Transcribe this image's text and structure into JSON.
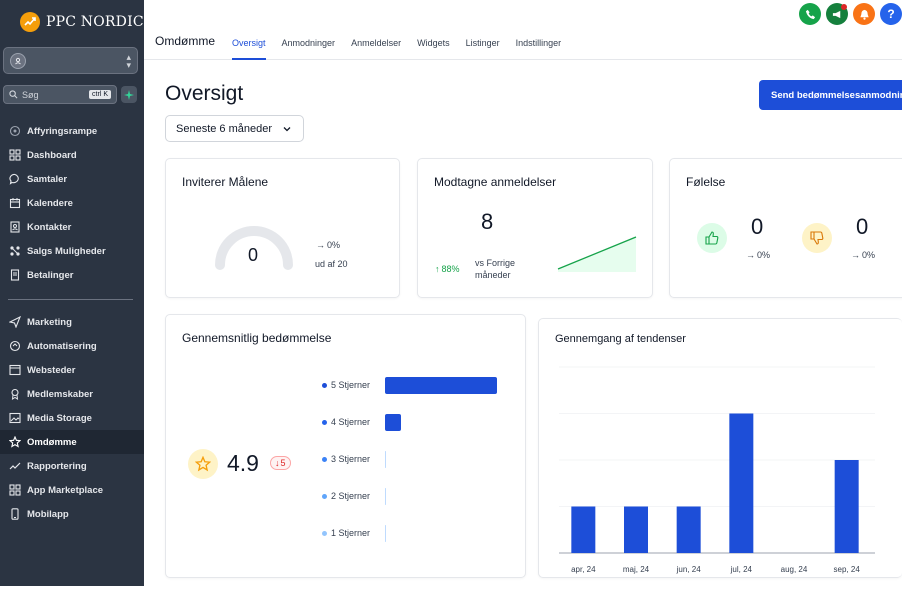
{
  "brand": {
    "name": "PPC NORDIC"
  },
  "search": {
    "placeholder": "Søg",
    "shortcut": "ctrl K"
  },
  "sidebar": {
    "items": [
      {
        "label": "Affyringsrampe",
        "icon": "rocket-icon"
      },
      {
        "label": "Dashboard",
        "icon": "dashboard-icon"
      },
      {
        "label": "Samtaler",
        "icon": "chat-icon"
      },
      {
        "label": "Kalendere",
        "icon": "calendar-icon"
      },
      {
        "label": "Kontakter",
        "icon": "contacts-icon"
      },
      {
        "label": "Salgs Muligheder",
        "icon": "opportunities-icon"
      },
      {
        "label": "Betalinger",
        "icon": "payments-icon"
      }
    ],
    "items2": [
      {
        "label": "Marketing",
        "icon": "send-icon"
      },
      {
        "label": "Automatisering",
        "icon": "automation-icon"
      },
      {
        "label": "Websteder",
        "icon": "websites-icon"
      },
      {
        "label": "Medlemskaber",
        "icon": "membership-icon"
      },
      {
        "label": "Media Storage",
        "icon": "media-icon"
      },
      {
        "label": "Omdømme",
        "icon": "star-icon",
        "active": true
      },
      {
        "label": "Rapportering",
        "icon": "reporting-icon"
      },
      {
        "label": "App Marketplace",
        "icon": "marketplace-icon"
      },
      {
        "label": "Mobilapp",
        "icon": "mobile-icon"
      }
    ]
  },
  "header": {
    "title": "Omdømme",
    "tabs": [
      "Oversigt",
      "Anmodninger",
      "Anmeldelser",
      "Widgets",
      "Listinger",
      "Indstillinger"
    ],
    "active_tab": "Oversigt"
  },
  "page": {
    "title": "Oversigt",
    "send_button": "Send bedømmelsesanmodning",
    "period": "Seneste 6 måneder"
  },
  "cards": {
    "invite": {
      "title": "Inviterer Målene",
      "value": "0",
      "trend": "0%",
      "target": "ud af 20"
    },
    "received": {
      "title": "Modtagne anmeldelser",
      "value": "8",
      "trend": "88%",
      "trend_label": "vs Forrige måneder"
    },
    "sentiment": {
      "title": "Følelse",
      "positive": "0",
      "positive_trend": "0%",
      "negative": "0",
      "negative_trend": "0%"
    },
    "rating": {
      "title": "Gennemsnitlig bedømmelse",
      "value": "4.9",
      "delta": "5",
      "rows": [
        {
          "label": "5 Stjerner",
          "fraction": 1.0
        },
        {
          "label": "4 Stjerner",
          "fraction": 0.14
        },
        {
          "label": "3 Stjerner",
          "fraction": 0.0
        },
        {
          "label": "2 Stjerner",
          "fraction": 0.0
        },
        {
          "label": "1 Stjerner",
          "fraction": 0.0
        }
      ]
    },
    "trend": {
      "title": "Gennemgang af tendenser"
    }
  },
  "chart_data": {
    "type": "bar",
    "categories": [
      "apr, 24",
      "maj, 24",
      "jun, 24",
      "jul, 24",
      "aug, 24",
      "sep, 24"
    ],
    "values": [
      1,
      1,
      1,
      3,
      0,
      2
    ],
    "ylim": [
      0,
      4
    ],
    "grid": true,
    "color": "#1d4ed8"
  },
  "colors": {
    "accent": "#1d4ed8",
    "sidebar": "#2b3442",
    "positive": "#16a34a",
    "negative": "#dc2626"
  }
}
